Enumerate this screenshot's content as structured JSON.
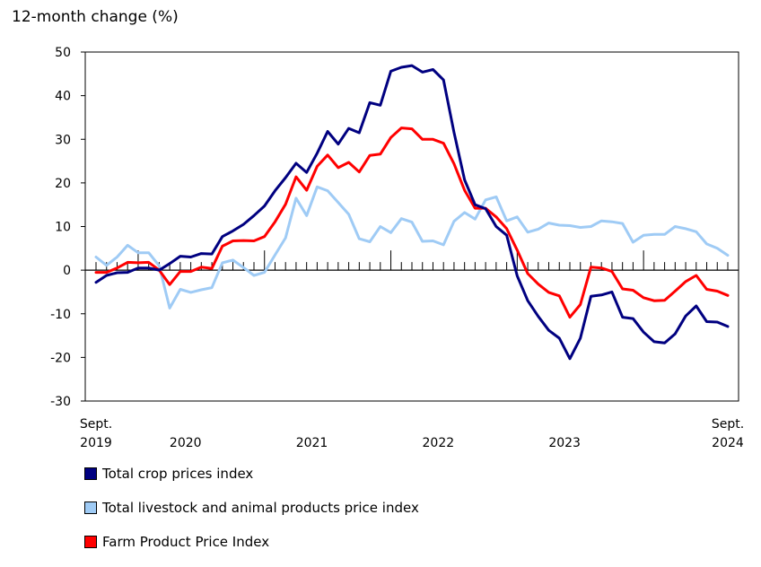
{
  "chart_data": {
    "type": "line",
    "ylabel": "12-month change (%)",
    "ylim": [
      -30,
      50
    ],
    "yticks": [
      -30,
      -20,
      -10,
      0,
      10,
      20,
      30,
      40,
      50
    ],
    "x_start": "Sept. 2019",
    "x_end": "Sept. 2024",
    "n_months": 61,
    "x_tick_labels": [
      {
        "month_index": 0,
        "line1": "Sept.",
        "line2": "2019"
      },
      {
        "month_index": 8.5,
        "line1": "",
        "line2": "2020"
      },
      {
        "month_index": 20.5,
        "line1": "",
        "line2": "2021"
      },
      {
        "month_index": 32.5,
        "line1": "",
        "line2": "2022"
      },
      {
        "month_index": 44.5,
        "line1": "",
        "line2": "2023"
      },
      {
        "month_index": 60,
        "line1": "Sept.",
        "line2": "2024"
      }
    ],
    "year_start_indices": [
      4,
      16,
      28,
      40,
      52
    ],
    "series": [
      {
        "name": "Total crop prices index",
        "color": "#000080",
        "values": [
          -2.8,
          -1.2,
          -0.6,
          -0.5,
          0.5,
          0.5,
          0.0,
          1.5,
          3.2,
          3.0,
          3.8,
          3.7,
          7.7,
          9.0,
          10.5,
          12.5,
          14.7,
          18.2,
          21.2,
          24.5,
          22.4,
          26.8,
          31.8,
          28.9,
          32.5,
          31.5,
          38.4,
          37.8,
          45.6,
          46.5,
          46.9,
          45.4,
          46.0,
          43.6,
          31.6,
          20.7,
          15.0,
          14.1,
          10.0,
          8.0,
          -1.3,
          -7.0,
          -10.6,
          -13.8,
          -15.6,
          -20.3,
          -15.6,
          -6.0,
          -5.7,
          -5.0,
          -10.8,
          -11.1,
          -14.2,
          -16.4,
          -16.7,
          -14.6,
          -10.5,
          -8.2,
          -11.8,
          -11.9,
          -12.9
        ]
      },
      {
        "name": "Total livestock and animal products price index",
        "color": "#9fcbf5",
        "values": [
          3.0,
          1.1,
          3.0,
          5.7,
          4.0,
          4.0,
          1.0,
          -8.7,
          -4.4,
          -5.1,
          -4.5,
          -4.0,
          1.7,
          2.3,
          0.6,
          -1.2,
          -0.5,
          3.5,
          7.4,
          16.5,
          12.5,
          19.1,
          18.2,
          15.5,
          12.8,
          7.2,
          6.5,
          10.0,
          8.6,
          11.8,
          11.0,
          6.6,
          6.7,
          5.8,
          11.2,
          13.2,
          11.7,
          16.1,
          16.8,
          11.3,
          12.2,
          8.7,
          9.4,
          10.8,
          10.3,
          10.2,
          9.8,
          10.0,
          11.3,
          11.1,
          10.7,
          6.4,
          8.0,
          8.2,
          8.2,
          10.0,
          9.5,
          8.8,
          6.0,
          5.0,
          3.4
        ]
      },
      {
        "name": "Farm Product Price Index",
        "color": "#ff0000",
        "values": [
          -0.5,
          -0.5,
          0.5,
          1.8,
          1.7,
          1.8,
          0.0,
          -3.3,
          -0.3,
          -0.3,
          0.7,
          0.4,
          5.5,
          6.7,
          6.8,
          6.7,
          7.7,
          11.1,
          15.1,
          21.4,
          18.3,
          23.8,
          26.4,
          23.5,
          24.7,
          22.5,
          26.3,
          26.6,
          30.4,
          32.6,
          32.4,
          30.0,
          30.0,
          29.1,
          24.4,
          18.3,
          14.2,
          14.2,
          12.2,
          9.5,
          4.6,
          -0.8,
          -3.2,
          -5.1,
          -5.9,
          -10.8,
          -7.9,
          0.7,
          0.5,
          -0.3,
          -4.3,
          -4.6,
          -6.3,
          -7.0,
          -6.9,
          -4.8,
          -2.6,
          -1.2,
          -4.4,
          -4.8,
          -5.8
        ]
      }
    ]
  }
}
